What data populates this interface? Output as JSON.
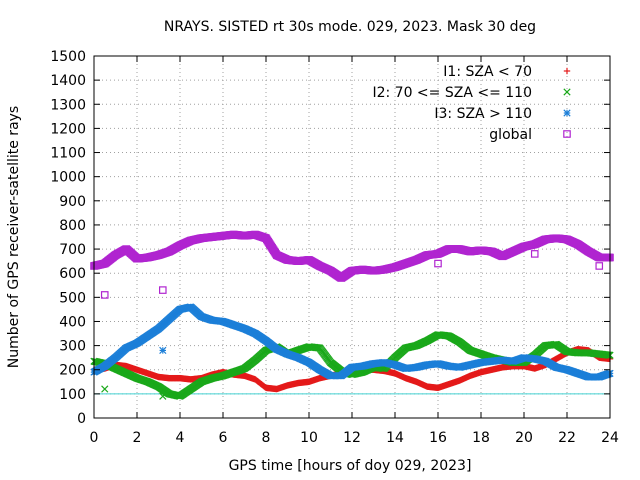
{
  "chart_data": {
    "type": "scatter",
    "title": "NRAYS. SISTED rt 30s mode. 029, 2023. Mask 30 deg",
    "xlabel": "GPS time [hours of doy 029, 2023]",
    "ylabel": "Number of GPS receiver-satellite rays",
    "xlim": [
      0,
      24
    ],
    "ylim": [
      0,
      1500
    ],
    "xticks": [
      0,
      2,
      4,
      6,
      8,
      10,
      12,
      14,
      16,
      18,
      20,
      22,
      24
    ],
    "yticks": [
      0,
      100,
      200,
      300,
      400,
      500,
      600,
      700,
      800,
      900,
      1000,
      1100,
      1200,
      1300,
      1400,
      1500
    ],
    "grid": true,
    "legend_position": "top-right",
    "reference_line": {
      "y": 100,
      "color": "#40d0d0"
    },
    "series": [
      {
        "name": "I1: SZA < 70",
        "marker": "plus",
        "color": "#e41a1a",
        "x": [
          0,
          0.5,
          1,
          1.5,
          2,
          2.5,
          3,
          3.5,
          4,
          4.5,
          5,
          5.5,
          6,
          6.5,
          7,
          7.5,
          8,
          8.5,
          9,
          9.5,
          10,
          10.5,
          11,
          11.5,
          12,
          12.5,
          13,
          13.5,
          14,
          14.5,
          15,
          15.5,
          16,
          16.5,
          17,
          17.5,
          18,
          18.5,
          19,
          19.5,
          20,
          20.5,
          21,
          21.5,
          22,
          22.5,
          23,
          23.5,
          24
        ],
        "y": [
          200,
          205,
          220,
          215,
          200,
          185,
          170,
          165,
          165,
          160,
          165,
          180,
          190,
          180,
          175,
          160,
          125,
          120,
          135,
          145,
          150,
          165,
          175,
          185,
          190,
          200,
          200,
          195,
          185,
          165,
          150,
          130,
          125,
          140,
          155,
          175,
          190,
          200,
          210,
          215,
          215,
          205,
          220,
          245,
          270,
          285,
          280,
          250,
          245
        ]
      },
      {
        "name": "I2: 70 <= SZA <= 110",
        "marker": "cross",
        "color": "#1aa81a",
        "x": [
          0,
          0.5,
          1,
          1.5,
          2,
          2.5,
          3,
          3.5,
          4,
          4.5,
          5,
          5.5,
          6,
          6.5,
          7,
          7.5,
          8,
          8.5,
          9,
          9.5,
          10,
          10.5,
          11,
          11.5,
          12,
          12.5,
          13,
          13.5,
          14,
          14.5,
          15,
          15.5,
          16,
          16.5,
          17,
          17.5,
          18,
          18.5,
          19,
          19.5,
          20,
          20.5,
          21,
          21.5,
          22,
          22.5,
          23,
          23.5,
          24
        ],
        "y": [
          235,
          225,
          205,
          185,
          165,
          150,
          130,
          100,
          90,
          120,
          150,
          165,
          175,
          190,
          205,
          240,
          280,
          295,
          265,
          280,
          295,
          290,
          230,
          195,
          180,
          190,
          210,
          205,
          250,
          290,
          300,
          320,
          345,
          340,
          315,
          280,
          265,
          250,
          240,
          230,
          230,
          260,
          300,
          305,
          275,
          270,
          270,
          265,
          260
        ]
      },
      {
        "name": "I3: SZA > 110",
        "marker": "star",
        "color": "#1c7fd8",
        "x": [
          0,
          0.5,
          1,
          1.5,
          2,
          2.5,
          3,
          3.5,
          4,
          4.5,
          5,
          5.5,
          6,
          6.5,
          7,
          7.5,
          8,
          8.5,
          9,
          9.5,
          10,
          10.5,
          11,
          11.5,
          12,
          12.5,
          13,
          13.5,
          14,
          14.5,
          15,
          15.5,
          16,
          16.5,
          17,
          17.5,
          18,
          18.5,
          19,
          19.5,
          20,
          20.5,
          21,
          21.5,
          22,
          22.5,
          23,
          23.5,
          24
        ],
        "y": [
          190,
          215,
          250,
          290,
          310,
          340,
          370,
          410,
          450,
          460,
          420,
          405,
          400,
          385,
          370,
          350,
          320,
          285,
          265,
          250,
          230,
          200,
          175,
          175,
          210,
          215,
          225,
          230,
          220,
          205,
          210,
          220,
          225,
          215,
          210,
          220,
          230,
          235,
          240,
          235,
          250,
          245,
          235,
          210,
          200,
          185,
          170,
          170,
          185
        ]
      },
      {
        "name": "global",
        "marker": "square",
        "color": "#b025d0",
        "x": [
          0,
          0.5,
          1,
          1.5,
          2,
          2.5,
          3,
          3.5,
          4,
          4.5,
          5,
          5.5,
          6,
          6.5,
          7,
          7.5,
          8,
          8.5,
          9,
          9.5,
          10,
          10.5,
          11,
          11.5,
          12,
          12.5,
          13,
          13.5,
          14,
          14.5,
          15,
          15.5,
          16,
          16.5,
          17,
          17.5,
          18,
          18.5,
          19,
          19.5,
          20,
          20.5,
          21,
          21.5,
          22,
          22.5,
          23,
          23.5,
          24
        ],
        "y": [
          630,
          640,
          675,
          700,
          660,
          665,
          675,
          690,
          715,
          735,
          745,
          750,
          755,
          760,
          755,
          760,
          745,
          675,
          655,
          650,
          655,
          630,
          610,
          580,
          610,
          615,
          610,
          615,
          625,
          640,
          655,
          675,
          680,
          700,
          700,
          690,
          695,
          690,
          670,
          690,
          710,
          720,
          740,
          745,
          740,
          720,
          690,
          665,
          665
        ]
      }
    ],
    "outliers": [
      {
        "series": "I2: 70 <= SZA <= 110",
        "x": 0.5,
        "y": 120
      },
      {
        "series": "I2: 70 <= SZA <= 110",
        "x": 3.2,
        "y": 90
      },
      {
        "series": "I3: SZA > 110",
        "x": 3.2,
        "y": 280
      },
      {
        "series": "global",
        "x": 0.5,
        "y": 510
      },
      {
        "series": "global",
        "x": 3.2,
        "y": 530
      },
      {
        "series": "global",
        "x": 16,
        "y": 640
      },
      {
        "series": "global",
        "x": 20.5,
        "y": 680
      },
      {
        "series": "global",
        "x": 23.5,
        "y": 630
      }
    ]
  }
}
